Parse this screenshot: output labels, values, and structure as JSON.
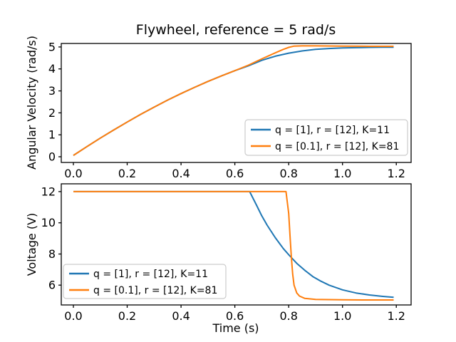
{
  "figure": {
    "title": "Flywheel, reference = 5 rad/s",
    "background": "#ffffff"
  },
  "colors": {
    "series_blue": "#1f77b4",
    "series_orange": "#ff7f0e",
    "axis": "#000000",
    "legend_border": "#cccccc"
  },
  "chart_data": [
    {
      "type": "line",
      "title": "Flywheel, reference = 5 rad/s",
      "xlabel": "",
      "ylabel": "Angular Velocity (rad/s)",
      "xlim": [
        -0.045,
        1.255
      ],
      "ylim": [
        -0.26,
        5.16
      ],
      "grid": false,
      "legend_position": "lower right",
      "xticks": [
        0.0,
        0.2,
        0.4,
        0.6,
        0.8,
        1.0,
        1.2
      ],
      "xtick_labels": [
        "0.0",
        "0.2",
        "0.4",
        "0.6",
        "0.8",
        "1.0",
        "1.2"
      ],
      "yticks": [
        0,
        1,
        2,
        3,
        4,
        5
      ],
      "ytick_labels": [
        "0",
        "1",
        "2",
        "3",
        "4",
        "5"
      ],
      "series": [
        {
          "name": "q = [1], r = [12], K=11",
          "color": "#1f77b4",
          "points": [
            [
              0.0,
              0.06
            ],
            [
              0.05,
              0.46
            ],
            [
              0.1,
              0.85
            ],
            [
              0.15,
              1.22
            ],
            [
              0.2,
              1.58
            ],
            [
              0.25,
              1.93
            ],
            [
              0.3,
              2.26
            ],
            [
              0.35,
              2.58
            ],
            [
              0.4,
              2.88
            ],
            [
              0.45,
              3.16
            ],
            [
              0.5,
              3.43
            ],
            [
              0.55,
              3.68
            ],
            [
              0.6,
              3.92
            ],
            [
              0.65,
              4.14
            ],
            [
              0.7,
              4.39
            ],
            [
              0.75,
              4.58
            ],
            [
              0.8,
              4.72
            ],
            [
              0.85,
              4.82
            ],
            [
              0.9,
              4.89
            ],
            [
              0.95,
              4.93
            ],
            [
              1.0,
              4.96
            ],
            [
              1.05,
              4.97
            ],
            [
              1.1,
              4.98
            ],
            [
              1.15,
              4.99
            ],
            [
              1.19,
              4.99
            ]
          ]
        },
        {
          "name": "q = [0.1], r = [12], K=81",
          "color": "#ff7f0e",
          "points": [
            [
              0.0,
              0.06
            ],
            [
              0.05,
              0.46
            ],
            [
              0.1,
              0.85
            ],
            [
              0.15,
              1.22
            ],
            [
              0.2,
              1.58
            ],
            [
              0.25,
              1.93
            ],
            [
              0.3,
              2.26
            ],
            [
              0.35,
              2.58
            ],
            [
              0.4,
              2.88
            ],
            [
              0.45,
              3.16
            ],
            [
              0.5,
              3.43
            ],
            [
              0.55,
              3.68
            ],
            [
              0.6,
              3.92
            ],
            [
              0.65,
              4.17
            ],
            [
              0.7,
              4.46
            ],
            [
              0.75,
              4.73
            ],
            [
              0.78,
              4.89
            ],
            [
              0.8,
              4.98
            ],
            [
              0.82,
              5.04
            ],
            [
              0.85,
              5.05
            ],
            [
              0.9,
              5.05
            ],
            [
              1.0,
              5.04
            ],
            [
              1.1,
              5.03
            ],
            [
              1.19,
              5.03
            ]
          ]
        }
      ]
    },
    {
      "type": "line",
      "title": "",
      "xlabel": "Time (s)",
      "ylabel": "Voltage (V)",
      "xlim": [
        -0.045,
        1.255
      ],
      "ylim": [
        4.73,
        12.5
      ],
      "grid": false,
      "legend_position": "lower left",
      "xticks": [
        0.0,
        0.2,
        0.4,
        0.6,
        0.8,
        1.0,
        1.2
      ],
      "xtick_labels": [
        "0.0",
        "0.2",
        "0.4",
        "0.6",
        "0.8",
        "1.0",
        "1.2"
      ],
      "yticks": [
        6,
        8,
        10,
        12
      ],
      "ytick_labels": [
        "6",
        "8",
        "10",
        "12"
      ],
      "series": [
        {
          "name": "q = [1], r = [12], K=11",
          "color": "#1f77b4",
          "points": [
            [
              0.0,
              12.0
            ],
            [
              0.655,
              12.0
            ],
            [
              0.68,
              11.15
            ],
            [
              0.7,
              10.45
            ],
            [
              0.72,
              9.85
            ],
            [
              0.75,
              9.05
            ],
            [
              0.78,
              8.35
            ],
            [
              0.8,
              7.95
            ],
            [
              0.83,
              7.4
            ],
            [
              0.86,
              6.95
            ],
            [
              0.89,
              6.55
            ],
            [
              0.92,
              6.25
            ],
            [
              0.95,
              6.0
            ],
            [
              1.0,
              5.7
            ],
            [
              1.05,
              5.5
            ],
            [
              1.1,
              5.37
            ],
            [
              1.15,
              5.28
            ],
            [
              1.19,
              5.22
            ]
          ]
        },
        {
          "name": "q = [0.1], r = [12], K=81",
          "color": "#ff7f0e",
          "points": [
            [
              0.0,
              12.0
            ],
            [
              0.79,
              12.0
            ],
            [
              0.8,
              10.6
            ],
            [
              0.805,
              9.2
            ],
            [
              0.81,
              7.8
            ],
            [
              0.815,
              6.7
            ],
            [
              0.82,
              6.0
            ],
            [
              0.83,
              5.5
            ],
            [
              0.84,
              5.3
            ],
            [
              0.86,
              5.15
            ],
            [
              0.9,
              5.08
            ],
            [
              1.0,
              5.06
            ],
            [
              1.1,
              5.05
            ],
            [
              1.19,
              5.05
            ]
          ]
        }
      ]
    }
  ]
}
